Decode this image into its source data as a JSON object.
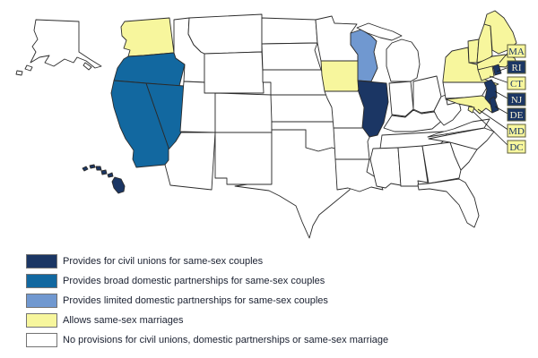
{
  "map": {
    "region": "United States",
    "colors": {
      "civil_unions": "#1B3664",
      "broad_dp": "#1268A0",
      "limited_dp": "#7098D0",
      "marriage": "#F7F69D",
      "none": "#FFFFFF",
      "state_border": "#2B2B2B",
      "leader_line": "#1A1A1A",
      "callout_border": "#5E5E3A",
      "callout_text_on_dark": "#F5F0D2",
      "callout_text_on_light": "#1B3664"
    },
    "states": {
      "AK": "none",
      "WA": "marriage",
      "OR": "broad_dp",
      "CA": "broad_dp",
      "NV": "broad_dp",
      "ID": "none",
      "MT": "none",
      "WY": "none",
      "UT": "none",
      "CO": "none",
      "AZ": "none",
      "NM": "none",
      "ND": "none",
      "SD": "none",
      "NE": "none",
      "KS": "none",
      "OK": "none",
      "TX": "none",
      "MN": "none",
      "IA": "marriage",
      "MO": "none",
      "AR": "none",
      "LA": "none",
      "WI": "limited_dp",
      "IL": "civil_unions",
      "MI": "none",
      "IN": "none",
      "OH": "none",
      "KY": "none",
      "TN": "none",
      "MS": "none",
      "AL": "none",
      "GA": "none",
      "FL": "none",
      "SC": "none",
      "NC": "none",
      "VA": "none",
      "WV": "none",
      "PA": "none",
      "NY": "marriage",
      "VT": "marriage",
      "NH": "marriage",
      "ME": "marriage",
      "MA": "marriage",
      "RI": "civil_unions",
      "CT": "marriage",
      "MD": "marriage",
      "NJ": "civil_unions",
      "DE": "civil_unions",
      "HI": "civil_unions",
      "DC": "marriage"
    }
  },
  "state_callouts": [
    {
      "abbr": "MA",
      "category": "marriage"
    },
    {
      "abbr": "RI",
      "category": "civil_unions"
    },
    {
      "abbr": "CT",
      "category": "marriage"
    },
    {
      "abbr": "NJ",
      "category": "civil_unions"
    },
    {
      "abbr": "DE",
      "category": "civil_unions"
    },
    {
      "abbr": "MD",
      "category": "marriage"
    },
    {
      "abbr": "DC",
      "category": "marriage"
    }
  ],
  "legend": [
    {
      "category": "civil_unions",
      "label": "Provides for civil unions for same-sex couples"
    },
    {
      "category": "broad_dp",
      "label": "Provides broad domestic partnerships for same-sex couples"
    },
    {
      "category": "limited_dp",
      "label": "Provides limited domestic partnerships for same-sex couples"
    },
    {
      "category": "marriage",
      "label": "Allows same-sex marriages"
    },
    {
      "category": "none",
      "label": "No provisions for civil unions, domestic partnerships or same-sex marriage"
    }
  ]
}
